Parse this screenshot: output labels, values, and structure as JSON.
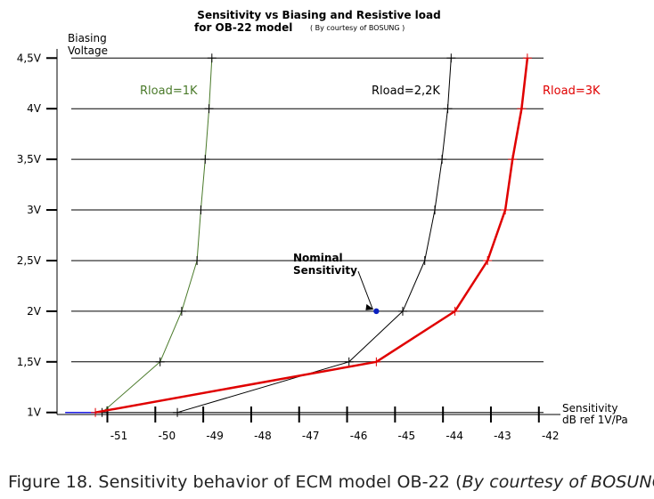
{
  "chart_data": {
    "type": "line",
    "title": "Sensitivity vs  Biasing and Resistive load",
    "subtitle_main": "for  OB-22 model",
    "subtitle_credit": "( By courtesy of BOSUNG )",
    "ylabel_line1": "Biasing",
    "ylabel_line2": "Voltage",
    "xlabel_line1": "Sensitivity",
    "xlabel_line2": "dB ref 1V/Pa",
    "xlim": [
      -52.05,
      -41.55
    ],
    "ylim": [
      0.98,
      4.52
    ],
    "x_ticks": [
      -51,
      -50,
      -49,
      -48,
      -47,
      -46,
      -45,
      -44,
      -43,
      -42
    ],
    "x_tick_labels": [
      "-51",
      "-50",
      "-49",
      "-48",
      "-47",
      "-46",
      "-45",
      "-44",
      "-43",
      "-42"
    ],
    "y_ticks": [
      1,
      1.5,
      2,
      2.5,
      3,
      3.5,
      4,
      4.5
    ],
    "y_tick_labels": [
      "1V",
      "1,5V",
      "2V",
      "2,5V",
      "3V",
      "3,5V",
      "4V",
      "4,5V"
    ],
    "grid": "horizontal",
    "series": [
      {
        "name": "Rload=1K",
        "color": "#4a7a2a",
        "x": [
          -51.11,
          -49.9,
          -49.45,
          -49.13,
          -49.05,
          -48.96,
          -48.88,
          -48.82
        ],
        "y": [
          1.0,
          1.5,
          2.0,
          2.5,
          3.0,
          3.5,
          4.0,
          4.5
        ]
      },
      {
        "name": "Rload=2,2K",
        "color": "#000000",
        "x": [
          -49.54,
          -45.96,
          -44.84,
          -44.38,
          -44.17,
          -44.02,
          -43.9,
          -43.83
        ],
        "y": [
          1.0,
          1.5,
          2.0,
          2.5,
          3.0,
          3.5,
          4.0,
          4.5
        ]
      },
      {
        "name": "Rload=3K",
        "color": "#e00000",
        "x": [
          -51.25,
          -45.39,
          -43.75,
          -43.07,
          -42.7,
          -42.55,
          -42.36,
          -42.24
        ],
        "y": [
          1.0,
          1.5,
          2.0,
          2.5,
          3.0,
          3.5,
          4.0,
          4.5
        ]
      }
    ],
    "annotation": {
      "line1": "Nominal",
      "line2": "Sensitivity",
      "point": [
        -45.39,
        2.0
      ],
      "point_color": "#0a20c0"
    },
    "extra_segment": {
      "color": "#1a1ae0",
      "x": [
        -51.88,
        -51.25
      ],
      "y": [
        1.0,
        1.0
      ]
    }
  },
  "caption": {
    "text": "Figure 18. Sensitivity behavior of ECM model OB-22 (",
    "italic": "By courtesy of BOSUNG",
    "end": ")"
  }
}
